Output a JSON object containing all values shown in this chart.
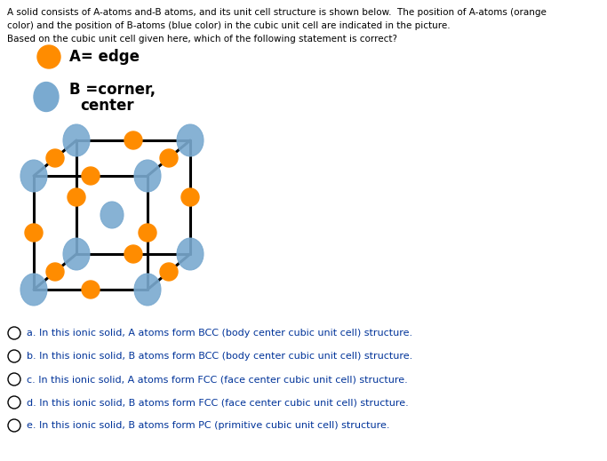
{
  "title_line1": "A solid consists of A-atoms and-B atoms, and its unit cell structure is shown below.  The position of A-atoms (orange",
  "title_line2": "color) and the position of B-atoms (blue color) in the cubic unit cell are indicated in the picture.",
  "title_line3": "Based on the cubic unit cell given here, which of the following statement is correct?",
  "legend_A_label": "A= edge",
  "legend_B_label1": "B =corner,",
  "legend_B_label2": "center",
  "orange_color": "#FF8C00",
  "blue_color": "#7AAAD0",
  "black_color": "#000000",
  "bg_color": "#FFFFFF",
  "options": [
    "a. In this ionic solid, A atoms form BCC (body center cubic unit cell) structure.",
    "b. In this ionic solid, B atoms form BCC (body center cubic unit cell) structure.",
    "c. In this ionic solid, A atoms form FCC (face center cubic unit cell) structure.",
    "d. In this ionic solid, B atoms form FCC (face center cubic unit cell) structure.",
    "e. In this ionic solid, B atoms form PC (primitive cubic unit cell) structure."
  ],
  "fig_width": 6.83,
  "fig_height": 5.19,
  "dpi": 100
}
